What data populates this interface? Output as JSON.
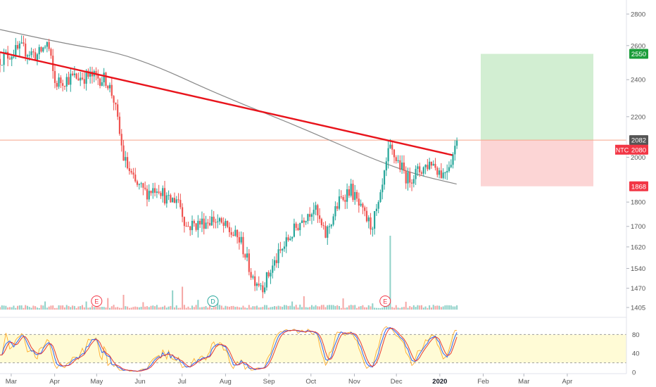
{
  "chart_data": {
    "type": "candlestick",
    "title": "",
    "symbol_tag": "NTC",
    "y_axis": {
      "scale": "log",
      "range": [
        1390,
        2900
      ],
      "ticks": [
        "2800",
        "2600",
        "2400",
        "2200",
        "2000",
        "1800",
        "1700",
        "1620",
        "1540",
        "1470",
        "1405"
      ]
    },
    "x_axis_labels": [
      "Mar",
      "Apr",
      "May",
      "Jun",
      "Jul",
      "Aug",
      "Sep",
      "Oct",
      "Nov",
      "Dec",
      "2020",
      "Feb",
      "Mar",
      "Apr"
    ],
    "price_badges": [
      {
        "label": "2550",
        "value": 2550,
        "color": "#1b9d3a"
      },
      {
        "label": "2082",
        "value": 2082,
        "color": "#555555"
      },
      {
        "label": "2080",
        "value": 2080,
        "color": "#f23645"
      },
      {
        "label": "1868",
        "value": 1868,
        "color": "#f23645"
      }
    ],
    "position_tool": {
      "entry": 2082,
      "target": 2550,
      "stop": 1868,
      "profit_color": "#cdeccd",
      "loss_color": "#fcd0d0"
    },
    "trendline": {
      "color": "#e8141c",
      "points": [
        {
          "date": "2019-02-21",
          "price": 2560
        },
        {
          "date": "2020-01-10",
          "price": 2010
        }
      ]
    },
    "moving_average": {
      "color": "#888888",
      "points": [
        [
          "2019-02-21",
          2700
        ],
        [
          "2019-04-10",
          2610
        ],
        [
          "2019-05-15",
          2560
        ],
        [
          "2019-06-15",
          2470
        ],
        [
          "2019-07-15",
          2360
        ],
        [
          "2019-08-15",
          2260
        ],
        [
          "2019-09-15",
          2170
        ],
        [
          "2019-10-15",
          2080
        ],
        [
          "2019-11-15",
          1990
        ],
        [
          "2019-12-15",
          1920
        ],
        [
          "2020-01-13",
          1878
        ]
      ]
    },
    "price_waypoints": [
      [
        "2019-02-21",
        2520
      ],
      [
        "2019-03-08",
        2580
      ],
      [
        "2019-03-20",
        2540
      ],
      [
        "2019-03-27",
        2620
      ],
      [
        "2019-04-01",
        2380
      ],
      [
        "2019-04-12",
        2410
      ],
      [
        "2019-04-26",
        2420
      ],
      [
        "2019-05-08",
        2400
      ],
      [
        "2019-05-13",
        2300
      ],
      [
        "2019-05-20",
        2000
      ],
      [
        "2019-05-28",
        1880
      ],
      [
        "2019-06-05",
        1840
      ],
      [
        "2019-06-14",
        1870
      ],
      [
        "2019-06-21",
        1800
      ],
      [
        "2019-06-28",
        1820
      ],
      [
        "2019-07-04",
        1700
      ],
      [
        "2019-07-12",
        1710
      ],
      [
        "2019-07-23",
        1730
      ],
      [
        "2019-08-02",
        1690
      ],
      [
        "2019-08-12",
        1640
      ],
      [
        "2019-08-20",
        1510
      ],
      [
        "2019-08-28",
        1480
      ],
      [
        "2019-09-05",
        1560
      ],
      [
        "2019-09-16",
        1660
      ],
      [
        "2019-09-26",
        1740
      ],
      [
        "2019-10-03",
        1780
      ],
      [
        "2019-10-11",
        1660
      ],
      [
        "2019-10-21",
        1800
      ],
      [
        "2019-10-29",
        1860
      ],
      [
        "2019-11-06",
        1760
      ],
      [
        "2019-11-13",
        1700
      ],
      [
        "2019-11-19",
        1790
      ],
      [
        "2019-11-26",
        2040
      ],
      [
        "2019-12-02",
        1980
      ],
      [
        "2019-12-09",
        1900
      ],
      [
        "2019-12-18",
        1940
      ],
      [
        "2019-12-26",
        1980
      ],
      [
        "2020-01-03",
        1920
      ],
      [
        "2020-01-09",
        1990
      ],
      [
        "2020-01-14",
        2080
      ]
    ],
    "volume_spikes": [
      {
        "date": "2019-11-27",
        "value": 10
      },
      {
        "date": "2020-01-14",
        "value": 2.2
      },
      {
        "date": "2019-07-01",
        "value": 3.1
      },
      {
        "date": "2019-06-24",
        "value": 2.6
      },
      {
        "date": "2019-05-20",
        "value": 2.0
      }
    ],
    "event_markers": [
      {
        "label": "E",
        "date": "2019-05-01",
        "color": "#f23645"
      },
      {
        "label": "D",
        "date": "2019-07-23",
        "color": "#26a69a"
      },
      {
        "label": "E",
        "date": "2019-11-23",
        "color": "#f23645"
      }
    ],
    "oscillator": {
      "range": [
        0,
        100
      ],
      "ticks": [
        "80",
        "40",
        "0"
      ],
      "upper_band": 80,
      "lower_band": 20,
      "band_color": "#fffbd6",
      "k_color": "#2962ff",
      "d_color": "#e53935",
      "fast_color": "#ff9800"
    }
  }
}
